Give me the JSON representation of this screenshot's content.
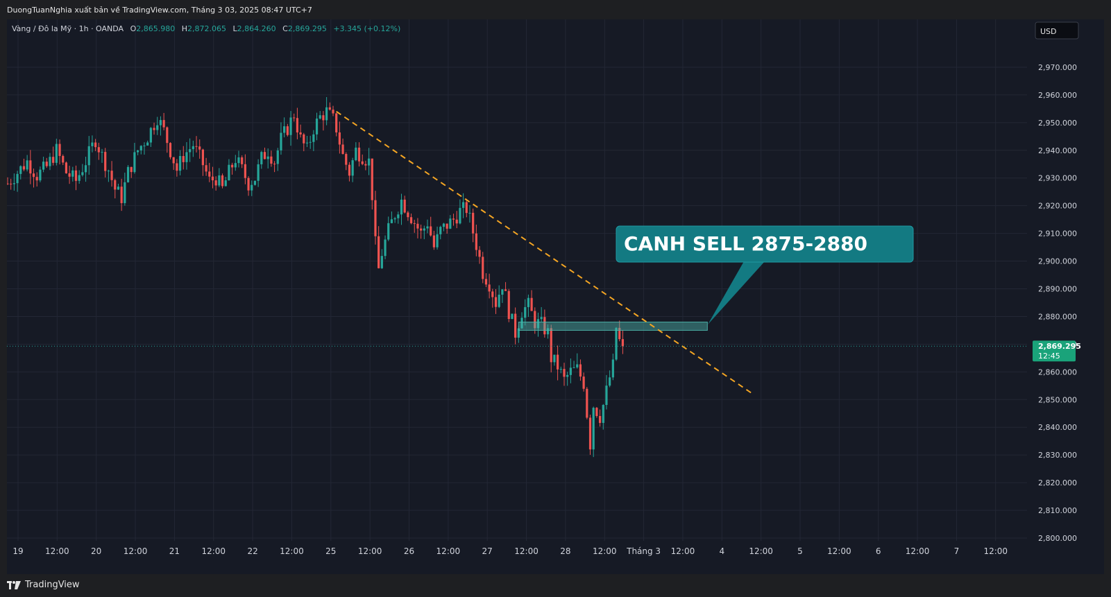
{
  "header": {
    "credit": "DuongTuanNghia xuất bản về TradingView.com, Tháng 3 03, 2025 08:47 UTC+7"
  },
  "legend": {
    "symbol": "Vàng / Đô la Mỹ · 1h · OANDA",
    "o_label": "O",
    "o_value": "2,865.980",
    "h_label": "H",
    "h_value": "2,872.065",
    "l_label": "L",
    "l_value": "2,864.260",
    "c_label": "C",
    "c_value": "2,869.295",
    "change": "+3.345 (+0.12%)"
  },
  "currency_button": "USD",
  "price_tag": {
    "price": "2,869.295",
    "countdown": "12:45"
  },
  "callout": {
    "text": "CANH SELL 2875-2880"
  },
  "footer": {
    "brand": "TradingView"
  },
  "colors": {
    "background": "#161a25",
    "grid": "#232735",
    "up": "#26a69a",
    "down": "#ef5350",
    "trendline": "#f5a623",
    "callout": "#137a82",
    "zone": "#4db6ac",
    "text": "#d1d4dc"
  },
  "chart_data": {
    "type": "candlestick",
    "timeframe": "1h",
    "ylim": [
      2800,
      2980
    ],
    "x_ticks": [
      "19",
      "12:00",
      "20",
      "12:00",
      "21",
      "12:00",
      "22",
      "12:00",
      "25",
      "12:00",
      "26",
      "12:00",
      "27",
      "12:00",
      "28",
      "12:00",
      "Tháng 3",
      "12:00",
      "4",
      "12:00",
      "5",
      "12:00",
      "6",
      "12:00",
      "7",
      "12:00"
    ],
    "y_ticks": [
      "2,970.000",
      "2,960.000",
      "2,950.000",
      "2,940.000",
      "2,930.000",
      "2,920.000",
      "2,910.000",
      "2,900.000",
      "2,890.000",
      "2,880.000",
      "2,870.000",
      "2,860.000",
      "2,850.000",
      "2,840.000",
      "2,830.000",
      "2,820.000",
      "2,810.000",
      "2,800.000"
    ],
    "last_price": 2869.295,
    "price_path": [
      [
        0,
        2928
      ],
      [
        3,
        2932
      ],
      [
        6,
        2936
      ],
      [
        9,
        2931
      ],
      [
        12,
        2934
      ],
      [
        15,
        2940
      ],
      [
        18,
        2932
      ],
      [
        21,
        2929
      ],
      [
        24,
        2936
      ],
      [
        27,
        2944
      ],
      [
        29,
        2938
      ],
      [
        31,
        2933
      ],
      [
        33,
        2926
      ],
      [
        35,
        2923
      ],
      [
        37,
        2932
      ],
      [
        40,
        2940
      ],
      [
        43,
        2945
      ],
      [
        46,
        2952
      ],
      [
        48,
        2947
      ],
      [
        50,
        2940
      ],
      [
        52,
        2933
      ],
      [
        54,
        2938
      ],
      [
        57,
        2942
      ],
      [
        60,
        2935
      ],
      [
        62,
        2929
      ],
      [
        64,
        2930
      ],
      [
        66,
        2926
      ],
      [
        68,
        2932
      ],
      [
        70,
        2937
      ],
      [
        72,
        2933
      ],
      [
        74,
        2928
      ],
      [
        76,
        2930
      ],
      [
        78,
        2937
      ],
      [
        80,
        2940
      ],
      [
        82,
        2936
      ],
      [
        84,
        2944
      ],
      [
        86,
        2948
      ],
      [
        88,
        2953
      ],
      [
        90,
        2944
      ],
      [
        92,
        2940
      ],
      [
        94,
        2948
      ],
      [
        96,
        2952
      ],
      [
        98,
        2954
      ],
      [
        100,
        2951
      ],
      [
        101,
        2948
      ],
      [
        103,
        2938
      ],
      [
        105,
        2932
      ],
      [
        107,
        2940
      ],
      [
        109,
        2938
      ],
      [
        111,
        2936
      ],
      [
        112,
        2924
      ],
      [
        113,
        2906
      ],
      [
        114,
        2897
      ],
      [
        115,
        2903
      ],
      [
        117,
        2911
      ],
      [
        119,
        2917
      ],
      [
        121,
        2922
      ],
      [
        123,
        2918
      ],
      [
        125,
        2914
      ],
      [
        127,
        2910
      ],
      [
        129,
        2914
      ],
      [
        131,
        2905
      ],
      [
        133,
        2911
      ],
      [
        135,
        2913
      ],
      [
        137,
        2915
      ],
      [
        139,
        2918
      ],
      [
        141,
        2919
      ],
      [
        142,
        2915
      ],
      [
        144,
        2906
      ],
      [
        146,
        2896
      ],
      [
        148,
        2892
      ],
      [
        150,
        2885
      ],
      [
        152,
        2892
      ],
      [
        154,
        2882
      ],
      [
        156,
        2874
      ],
      [
        158,
        2882
      ],
      [
        160,
        2884
      ],
      [
        162,
        2878
      ],
      [
        164,
        2877
      ],
      [
        166,
        2874
      ],
      [
        167,
        2865
      ],
      [
        169,
        2862
      ],
      [
        171,
        2857
      ],
      [
        173,
        2860
      ],
      [
        175,
        2861
      ],
      [
        177,
        2856
      ],
      [
        178,
        2845
      ],
      [
        179,
        2834
      ],
      [
        180,
        2848
      ],
      [
        182,
        2844
      ],
      [
        183,
        2848
      ],
      [
        184,
        2853
      ],
      [
        185,
        2858
      ],
      [
        186,
        2862
      ],
      [
        187,
        2876
      ],
      [
        188,
        2871
      ],
      [
        189,
        2869.295
      ]
    ],
    "trendline": {
      "from": {
        "hours_from_start": 101,
        "price": 2954
      },
      "to": {
        "hours_from_start": 229,
        "price": 2852
      },
      "style": "dashed"
    },
    "zone": {
      "from_hours": 157,
      "to_hours": 215,
      "price_low": 2875,
      "price_high": 2878
    },
    "annotation": {
      "text": "CANH SELL 2875-2880",
      "points_to_price": 2875
    }
  }
}
